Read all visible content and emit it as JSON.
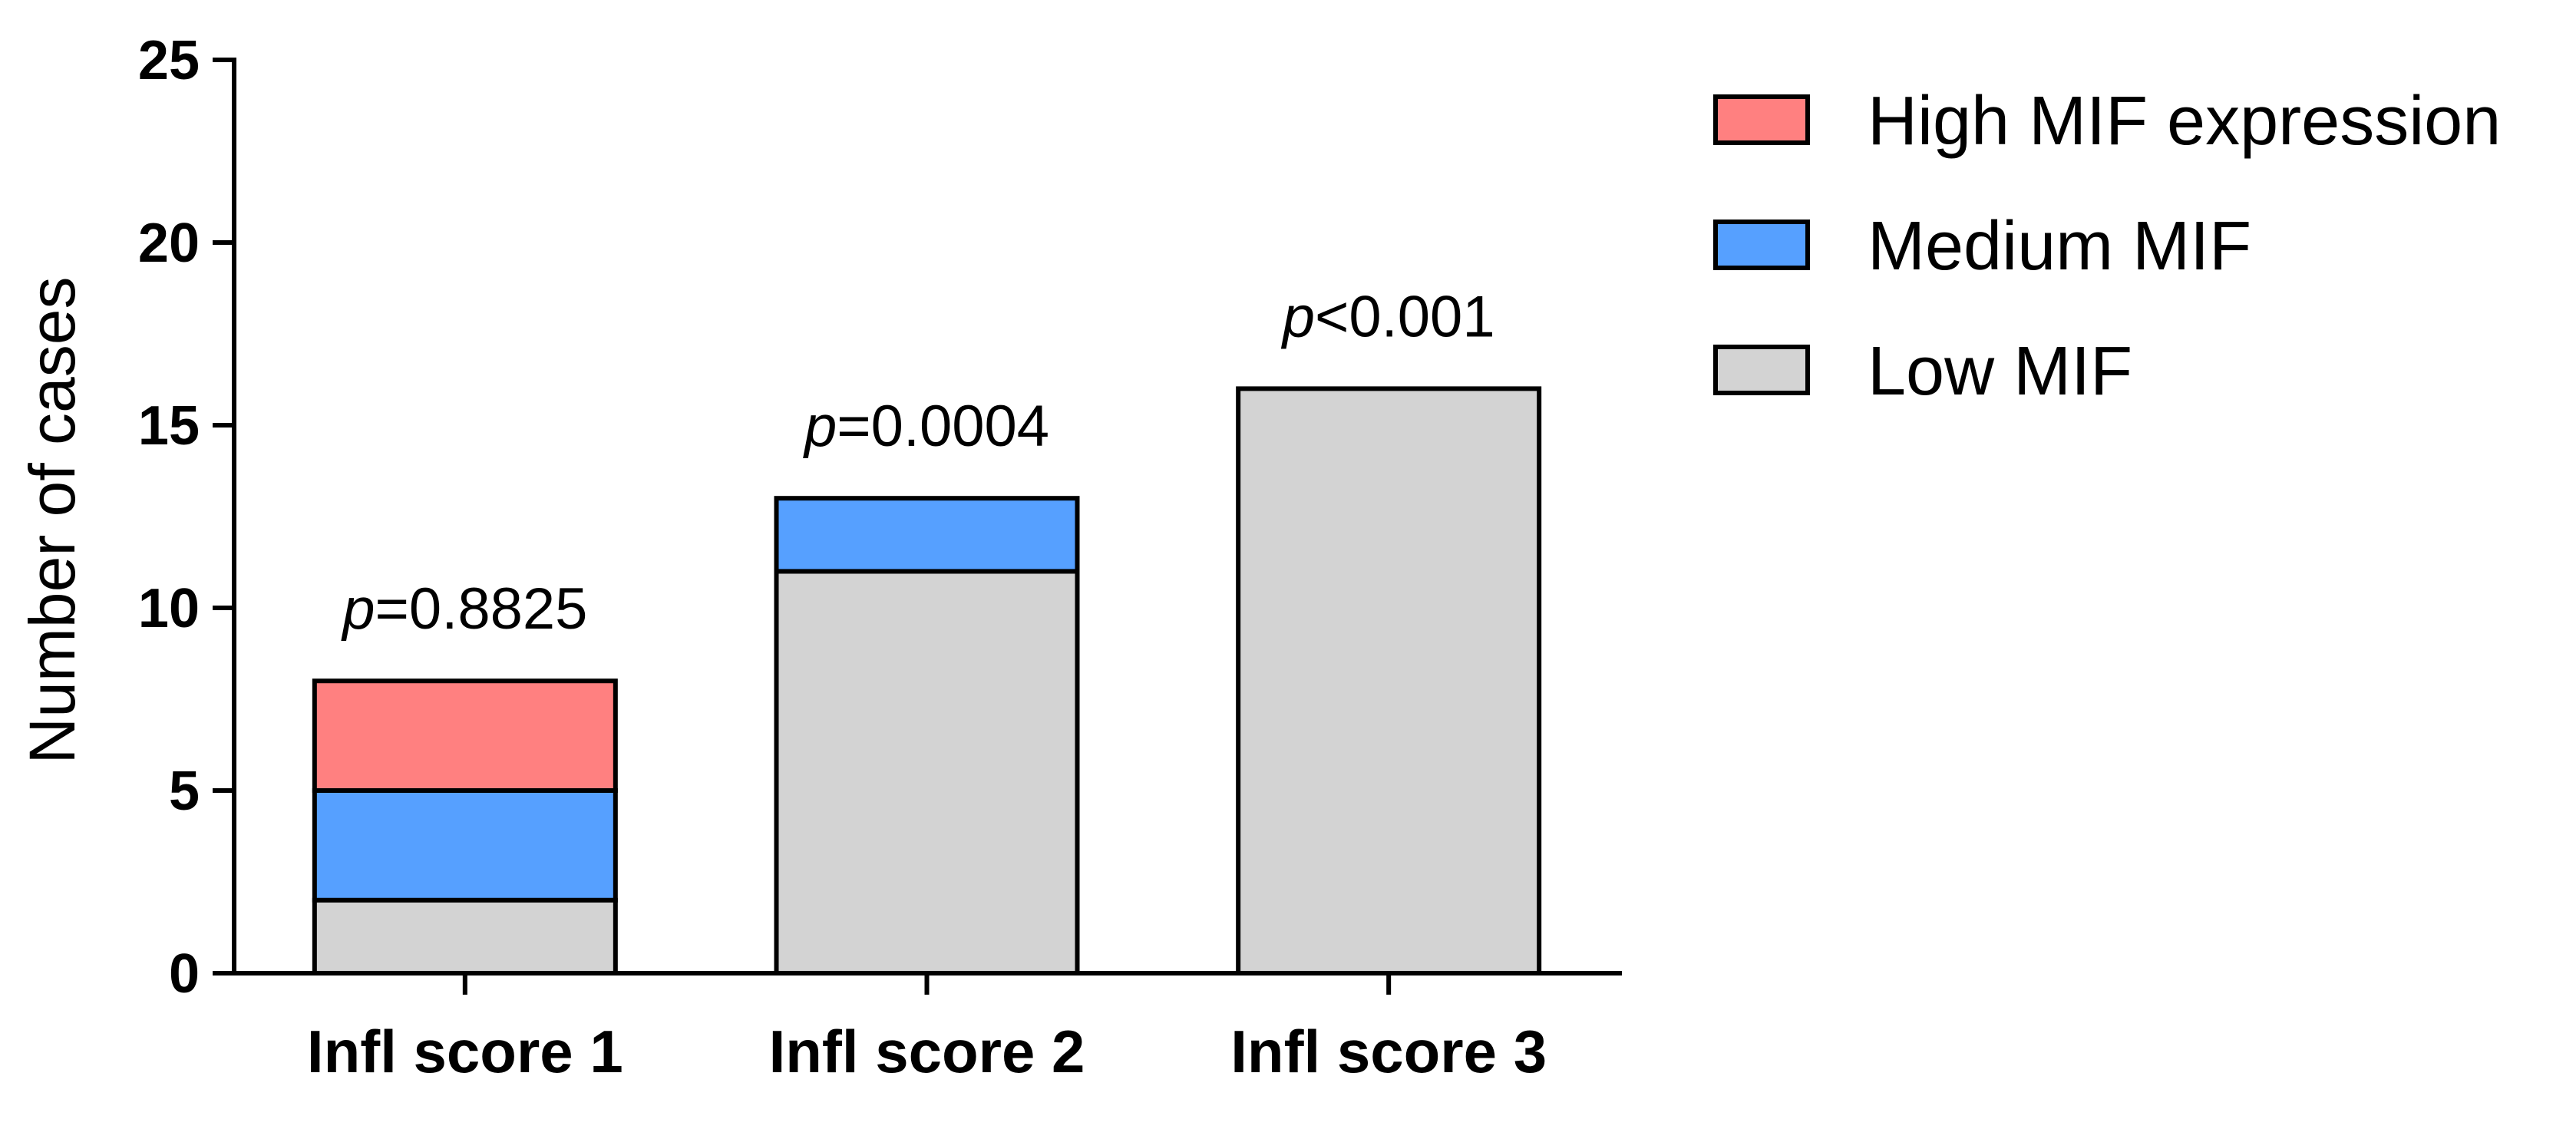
{
  "chart_data": {
    "type": "bar",
    "stacked": true,
    "categories": [
      "Infl score 1",
      "Infl score 2",
      "Infl score 3"
    ],
    "series": [
      {
        "name": "Low MIF",
        "values": [
          2,
          11,
          16
        ],
        "color": "#d3d3d3"
      },
      {
        "name": "Medium MIF",
        "values": [
          3,
          2,
          0
        ],
        "color": "#56a0ff"
      },
      {
        "name": "High MIF expression",
        "values": [
          3,
          0,
          0
        ],
        "color": "#ff8080"
      }
    ],
    "legend_order": [
      "High MIF expression",
      "Medium MIF",
      "Low MIF"
    ],
    "legend_position": "top-right",
    "annotations": [
      {
        "category": "Infl score 1",
        "italic": "p",
        "rest": "=0.8825"
      },
      {
        "category": "Infl score 2",
        "italic": "p",
        "rest": "=0.0004"
      },
      {
        "category": "Infl score 3",
        "italic": "p",
        "rest": "<0.001"
      }
    ],
    "ylabel": "Number of cases",
    "xlabel": "",
    "ylim": [
      0,
      25
    ],
    "yticks": [
      0,
      5,
      10,
      15,
      20,
      25
    ],
    "grid": false
  }
}
